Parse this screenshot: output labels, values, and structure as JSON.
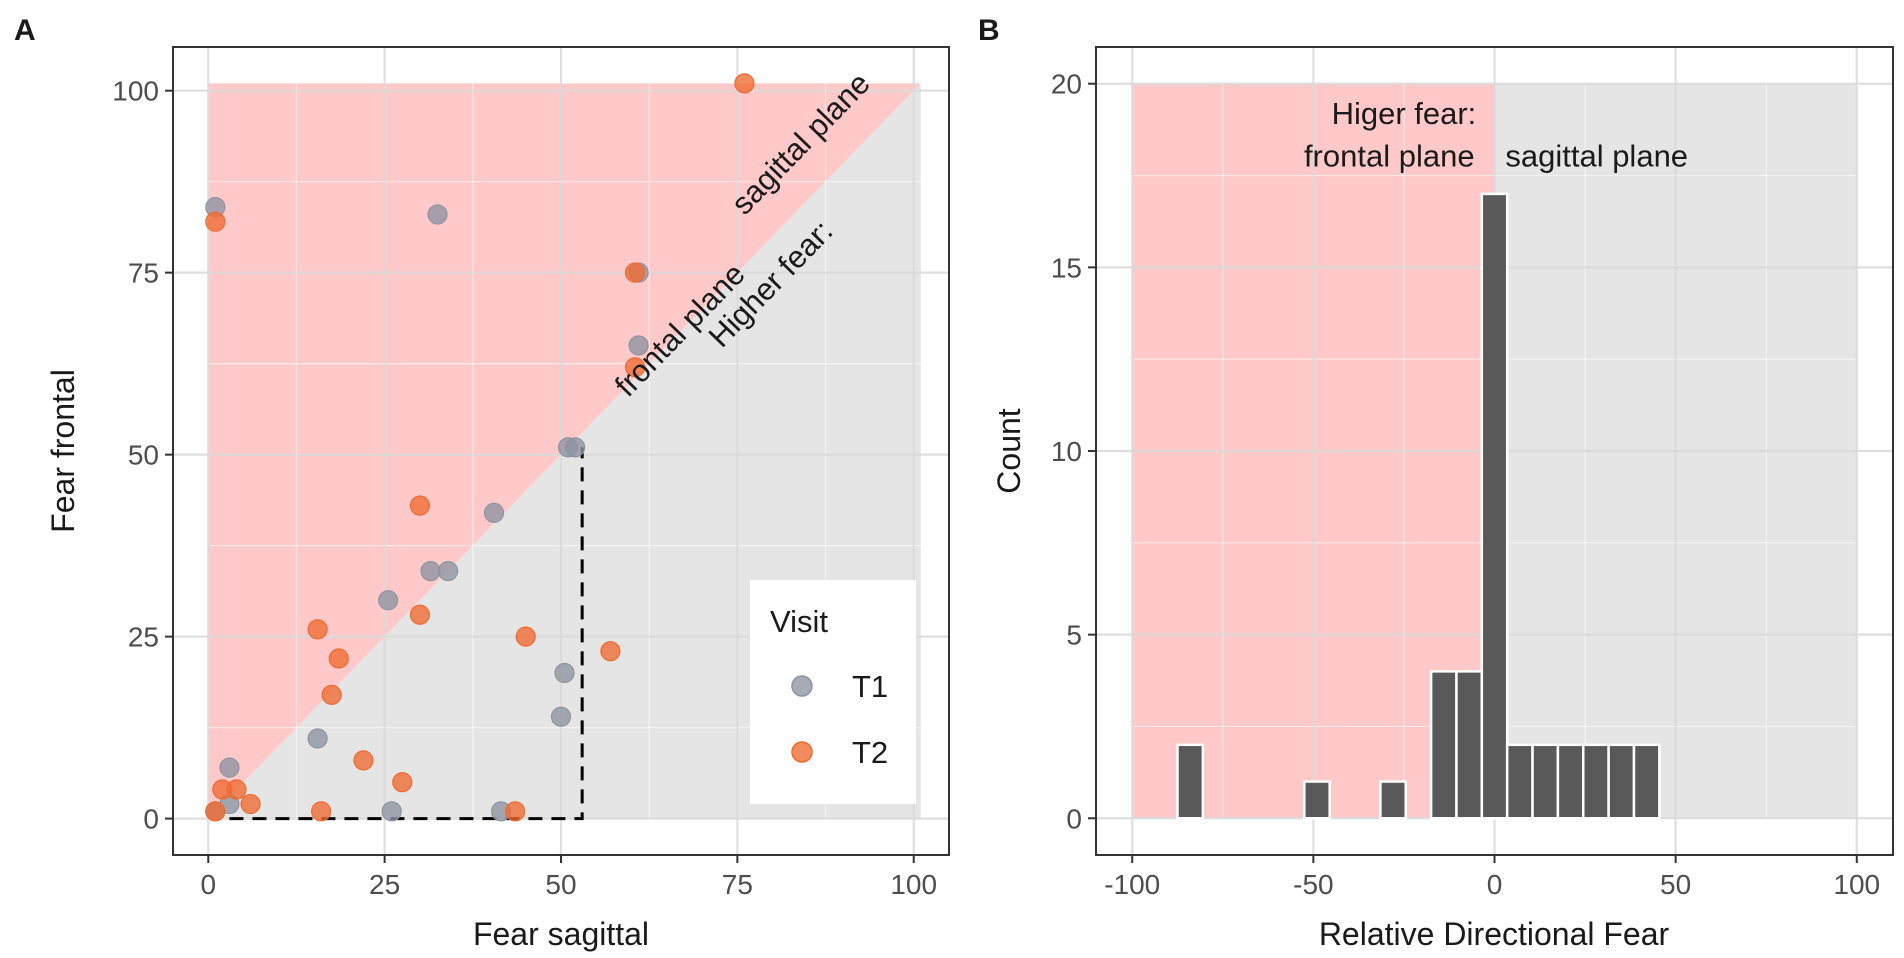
{
  "chart_data": [
    {
      "panel": "A",
      "type": "scatter",
      "xlabel": "Fear sagittal",
      "ylabel": "Fear frontal",
      "xlim": [
        -5,
        105
      ],
      "ylim": [
        -5,
        106
      ],
      "xticks": [
        0,
        25,
        50,
        75,
        100
      ],
      "yticks": [
        0,
        25,
        50,
        75,
        100
      ],
      "grid": true,
      "regions": [
        {
          "name": "frontal",
          "color": "#ffc9c9"
        },
        {
          "name": "sagittal",
          "color": "#e5e5e5"
        }
      ],
      "annotation_lines": [
        "Higher fear:",
        "frontal plane",
        "sagittal plane"
      ],
      "dashed_triangle": [
        [
          3,
          0
        ],
        [
          53,
          0
        ],
        [
          53,
          51
        ]
      ],
      "legend": {
        "title": "Visit",
        "entries": [
          {
            "label": "T1",
            "color": "#8d94a1"
          },
          {
            "label": "T2",
            "color": "#ef6a32"
          }
        ]
      },
      "series": [
        {
          "name": "T1",
          "color": "#8d94a1",
          "points": [
            [
              1,
              84
            ],
            [
              1,
              1
            ],
            [
              3,
              7
            ],
            [
              3,
              2
            ],
            [
              32.5,
              83
            ],
            [
              61,
              75
            ],
            [
              61,
              65
            ],
            [
              51,
              51
            ],
            [
              52,
              51
            ],
            [
              40.5,
              42
            ],
            [
              31.5,
              34
            ],
            [
              34,
              34
            ],
            [
              25.5,
              30
            ],
            [
              50.5,
              20
            ],
            [
              50,
              14
            ],
            [
              15.5,
              11
            ],
            [
              26,
              1
            ],
            [
              41.5,
              1
            ]
          ]
        },
        {
          "name": "T2",
          "color": "#ef6a32",
          "points": [
            [
              1,
              82
            ],
            [
              76,
              101
            ],
            [
              60.5,
              75
            ],
            [
              60.5,
              62
            ],
            [
              30,
              43
            ],
            [
              30,
              28
            ],
            [
              15.5,
              26
            ],
            [
              18.5,
              22
            ],
            [
              17.5,
              17
            ],
            [
              45,
              25
            ],
            [
              57,
              23
            ],
            [
              22,
              8
            ],
            [
              27.5,
              5
            ],
            [
              2,
              4
            ],
            [
              4,
              4
            ],
            [
              6,
              2
            ],
            [
              16,
              1
            ],
            [
              43.5,
              1
            ],
            [
              1,
              1
            ]
          ]
        }
      ]
    },
    {
      "panel": "B",
      "type": "bar",
      "subtype": "histogram",
      "xlabel": "Relative Directional Fear",
      "ylabel": "Count",
      "xlim": [
        -110,
        110
      ],
      "ylim": [
        -1,
        21
      ],
      "xticks": [
        -100,
        -50,
        0,
        50,
        100
      ],
      "xtick_labels": [
        "-100",
        "-50",
        "0",
        "50",
        "100"
      ],
      "yticks": [
        0,
        5,
        10,
        15,
        20
      ],
      "grid": true,
      "regions": [
        {
          "name": "frontal",
          "from": -100,
          "to": 0,
          "color": "#ffc9c9"
        },
        {
          "name": "sagittal",
          "from": 0,
          "to": 100,
          "color": "#e5e5e5"
        }
      ],
      "annotation_lines": [
        "Higer fear:",
        "frontal plane",
        "sagittal plane"
      ],
      "bin_width": 7,
      "bins": [
        {
          "center": -84,
          "count": 2
        },
        {
          "center": -49,
          "count": 1
        },
        {
          "center": -28,
          "count": 1
        },
        {
          "center": -14,
          "count": 4
        },
        {
          "center": -7,
          "count": 4
        },
        {
          "center": 0,
          "count": 17
        },
        {
          "center": 7,
          "count": 2
        },
        {
          "center": 14,
          "count": 2
        },
        {
          "center": 21,
          "count": 2
        },
        {
          "center": 28,
          "count": 2
        },
        {
          "center": 35,
          "count": 2
        },
        {
          "center": 42,
          "count": 2
        }
      ],
      "bar_color": "#595959"
    }
  ]
}
